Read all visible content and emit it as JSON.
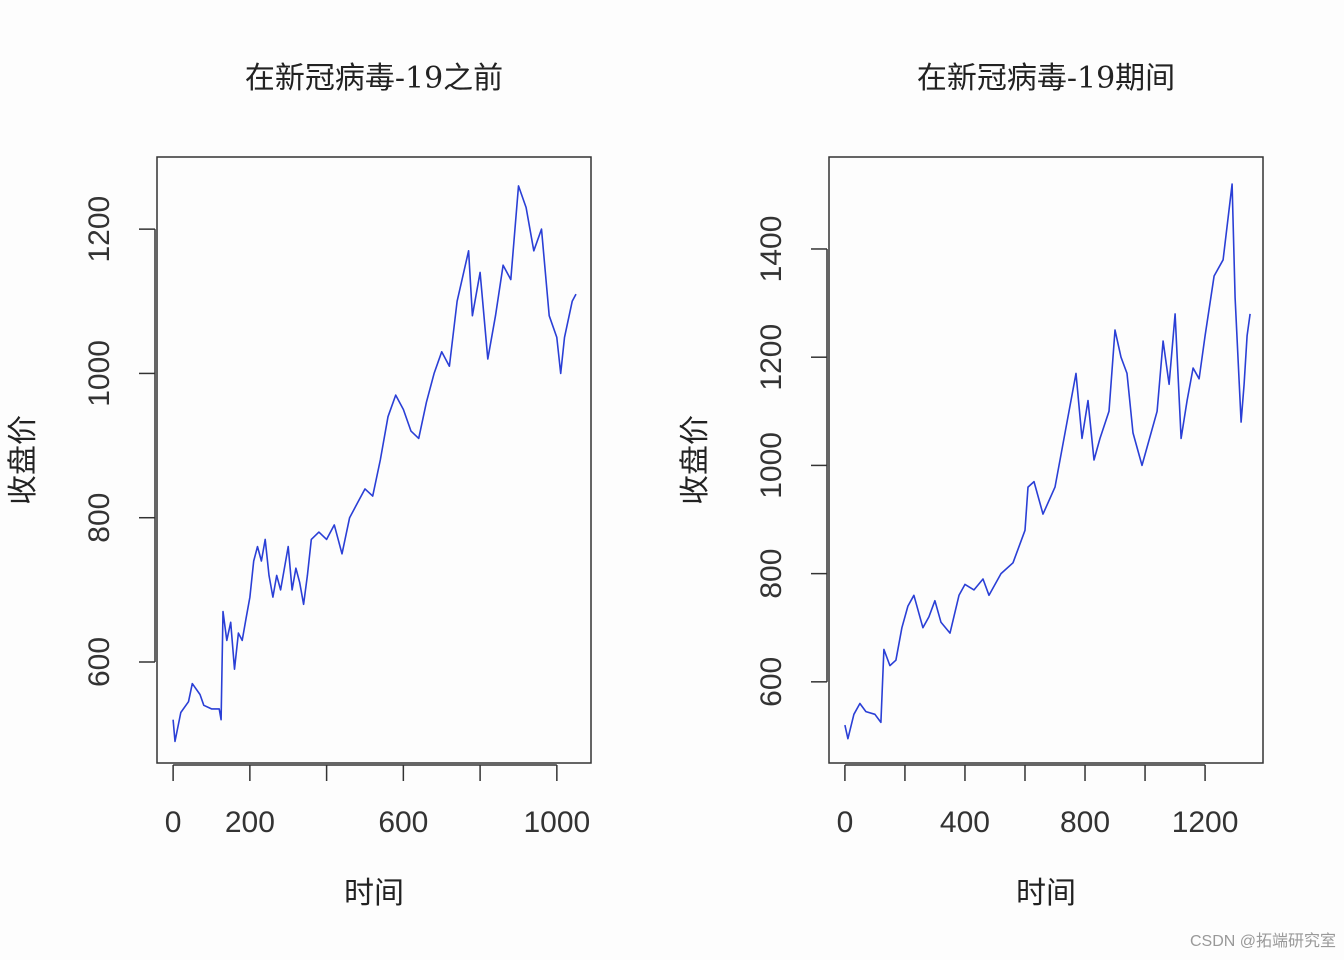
{
  "chart_data": [
    {
      "type": "line",
      "title": "在新冠病毒-19之前",
      "xlabel": "时间",
      "ylabel": "收盘价",
      "color": "#2a3fd6",
      "xlim": [
        -42,
        1089
      ],
      "ylim": [
        460,
        1300
      ],
      "xticks": [
        0,
        200,
        {
          "value": 400,
          "label": null
        },
        600,
        {
          "value": 800,
          "label": null
        },
        1000
      ],
      "yticks": [
        600,
        800,
        1000,
        1200
      ],
      "x": [
        0,
        5,
        20,
        40,
        50,
        70,
        80,
        100,
        120,
        125,
        130,
        140,
        150,
        160,
        170,
        180,
        190,
        200,
        210,
        220,
        230,
        240,
        250,
        260,
        270,
        280,
        300,
        310,
        320,
        330,
        340,
        350,
        360,
        380,
        400,
        420,
        440,
        460,
        480,
        500,
        520,
        540,
        560,
        580,
        600,
        620,
        640,
        660,
        680,
        700,
        720,
        740,
        770,
        780,
        800,
        820,
        840,
        860,
        880,
        900,
        920,
        940,
        960,
        980,
        1000,
        1010,
        1020,
        1040,
        1050
      ],
      "values": [
        520,
        490,
        530,
        545,
        570,
        555,
        540,
        535,
        535,
        520,
        670,
        630,
        655,
        590,
        640,
        630,
        660,
        690,
        740,
        760,
        740,
        770,
        720,
        690,
        720,
        700,
        760,
        700,
        730,
        710,
        680,
        720,
        770,
        780,
        770,
        790,
        750,
        800,
        820,
        840,
        830,
        880,
        940,
        970,
        950,
        920,
        910,
        960,
        1000,
        1030,
        1010,
        1100,
        1170,
        1080,
        1140,
        1020,
        1080,
        1150,
        1130,
        1260,
        1230,
        1170,
        1200,
        1080,
        1050,
        1000,
        1050,
        1100,
        1110
      ]
    },
    {
      "type": "line",
      "title": "在新冠病毒-19期间",
      "xlabel": "时间",
      "ylabel": "收盘价",
      "color": "#2a3fd6",
      "xlim": [
        -53,
        1393
      ],
      "ylim": [
        450,
        1570
      ],
      "xticks": [
        0,
        {
          "value": 200,
          "label": null
        },
        400,
        {
          "value": 600,
          "label": null
        },
        800,
        {
          "value": 1000,
          "label": null
        },
        1200
      ],
      "yticks": [
        600,
        800,
        1000,
        1200,
        1400
      ],
      "x": [
        0,
        10,
        30,
        50,
        70,
        100,
        120,
        130,
        150,
        170,
        190,
        210,
        230,
        260,
        280,
        300,
        320,
        350,
        380,
        400,
        430,
        460,
        480,
        520,
        560,
        600,
        610,
        630,
        660,
        700,
        720,
        740,
        770,
        790,
        810,
        830,
        850,
        880,
        900,
        920,
        940,
        960,
        990,
        1000,
        1040,
        1060,
        1080,
        1100,
        1120,
        1140,
        1160,
        1180,
        1200,
        1230,
        1260,
        1290,
        1300,
        1320,
        1330,
        1340,
        1350
      ],
      "values": [
        520,
        495,
        540,
        560,
        545,
        540,
        525,
        660,
        630,
        640,
        700,
        740,
        760,
        700,
        720,
        750,
        710,
        690,
        760,
        780,
        770,
        790,
        760,
        800,
        820,
        880,
        960,
        970,
        910,
        960,
        1020,
        1080,
        1170,
        1050,
        1120,
        1010,
        1050,
        1100,
        1250,
        1200,
        1170,
        1060,
        1000,
        1020,
        1100,
        1230,
        1150,
        1280,
        1050,
        1120,
        1180,
        1160,
        1240,
        1350,
        1380,
        1520,
        1310,
        1080,
        1150,
        1240,
        1280
      ]
    }
  ],
  "watermark": "CSDN @拓端研究室"
}
